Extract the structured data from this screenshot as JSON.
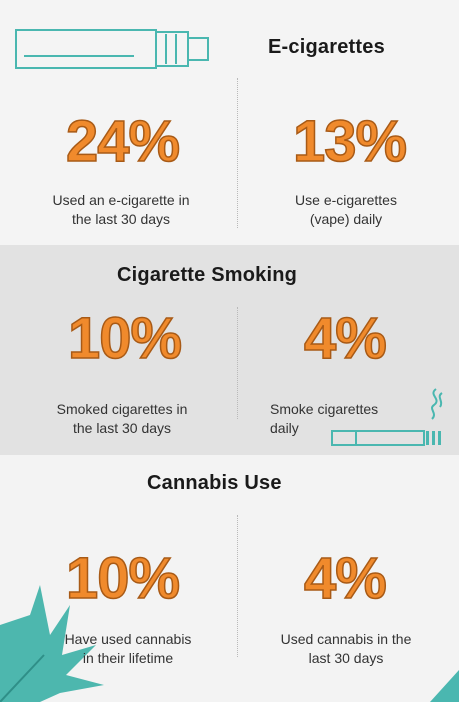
{
  "ecigarettes": {
    "heading": "E-cigarettes",
    "left": {
      "value": "24%",
      "line1": "Used an e-cigarette in",
      "line2": "the last 30 days"
    },
    "right": {
      "value": "13%",
      "line1": "Use e-cigarettes",
      "line2": "(vape) daily"
    }
  },
  "smoking": {
    "heading": "Cigarette Smoking",
    "left": {
      "value": "10%",
      "line1": "Smoked cigarettes in",
      "line2": "the last 30 days"
    },
    "right": {
      "value": "4%",
      "line1": "Smoke cigarettes",
      "line2": "daily"
    }
  },
  "cannabis": {
    "heading": "Cannabis Use",
    "left": {
      "value": "10%",
      "line1": "Have used cannabis",
      "line2": "in their lifetime"
    },
    "right": {
      "value": "4%",
      "line1": "Used cannabis in the",
      "line2": "last 30 days"
    }
  },
  "icons": [
    "e-cigarette-icon",
    "cigarette-icon",
    "smoke-icon",
    "cannabis-leaf-icon"
  ],
  "colors": {
    "percent": "#f08a2c",
    "icon_teal": "#4ab7b0",
    "band": "#e2e2e2"
  }
}
